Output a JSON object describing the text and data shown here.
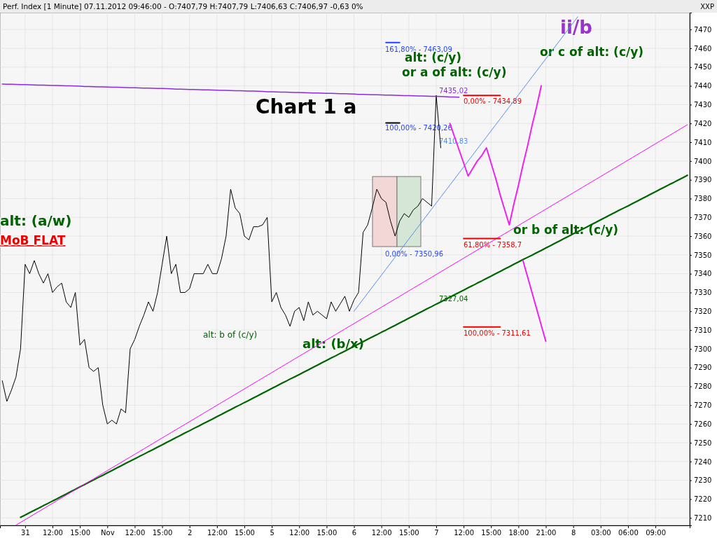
{
  "chart_data": {
    "type": "line",
    "title": "Perf. Index [1 Minute] 07.11.2012 09:46:00 - O:7407,79 H:7407,79 L:7406,63 C:7406,97 -0,63 0%",
    "ylabel": "XXP",
    "categories": [
      null,
      null,
      null,
      null,
      null,
      "31",
      null,
      null,
      null,
      null,
      null,
      "12:00",
      null,
      null,
      null,
      null,
      null,
      "15:00",
      null,
      null,
      null,
      null,
      null,
      "Nov",
      null,
      null,
      null,
      null,
      null,
      "12:00",
      null,
      null,
      null,
      null,
      null,
      "15:00",
      null,
      null,
      null,
      null,
      null,
      "2",
      null,
      null,
      null,
      null,
      null,
      "12:00",
      null,
      null,
      null,
      null,
      null,
      "15:00",
      null,
      null,
      null,
      null,
      null,
      "5",
      null,
      null,
      null,
      null,
      null,
      "12:00",
      null,
      null,
      null,
      null,
      null,
      "15:00",
      null,
      null,
      null,
      null,
      null,
      "6",
      null,
      null,
      null,
      null,
      null,
      "12:00",
      null,
      null,
      null,
      null,
      null,
      "15:00",
      null,
      null,
      null,
      null,
      null,
      "7",
      null,
      null,
      null,
      null,
      null,
      "12:00",
      null,
      null,
      null,
      null,
      null,
      "15:00",
      null,
      null,
      null,
      null,
      null,
      "18:00",
      null,
      null,
      null,
      null,
      null,
      "21:00",
      null,
      null,
      null,
      null,
      null,
      "8",
      null,
      null,
      null,
      null,
      null,
      "03:00",
      null,
      null,
      null,
      null,
      null,
      "06:00",
      null,
      null,
      null,
      null,
      null,
      "09:00",
      null,
      null,
      null,
      null,
      null,
      null,
      null
    ],
    "ylim": [
      7206,
      7479
    ],
    "yticks": [
      7210,
      7220,
      7230,
      7240,
      7250,
      7260,
      7270,
      7280,
      7290,
      7300,
      7310,
      7320,
      7330,
      7340,
      7350,
      7360,
      7370,
      7380,
      7390,
      7400,
      7410,
      7420,
      7430,
      7440,
      7450,
      7460,
      7470
    ],
    "grid": true,
    "series": [
      {
        "color": "#000000",
        "values": [
          7283,
          7272,
          7278,
          7285,
          7300,
          7345,
          7340,
          7347,
          7340,
          7335,
          7340,
          7330,
          7333,
          7335,
          7325,
          7322,
          7330,
          7302,
          7305,
          7290,
          7288,
          7290,
          7270,
          7260,
          7262,
          7260,
          7268,
          7266,
          7300,
          7305,
          7312,
          7318,
          7325,
          7320,
          7330,
          7345,
          7360,
          7340,
          7345,
          7330,
          7330,
          7332,
          7340,
          7340,
          7340,
          7345,
          7340,
          7340,
          7348,
          7360,
          7385,
          7375,
          7372,
          7360,
          7358,
          7365,
          7365,
          7366,
          7370,
          7325,
          7330,
          7322,
          7318,
          7312,
          7320,
          7322,
          7315,
          7325,
          7318,
          7320,
          7318,
          7316,
          7325,
          7320,
          7324,
          7328,
          7320,
          7326,
          7330,
          7362,
          7366,
          7375,
          7385,
          7380,
          7378,
          7368,
          7360,
          7368,
          7372,
          7370,
          7374,
          7376,
          7380,
          7378,
          7376,
          7435,
          7407,
          null,
          null,
          null,
          null,
          null,
          null,
          null,
          null,
          null,
          null,
          null,
          null,
          null,
          null,
          null,
          null,
          null,
          null,
          null,
          null,
          null,
          null,
          null,
          null,
          null,
          null,
          null,
          null,
          null,
          null,
          null,
          null,
          null,
          null,
          null,
          null,
          null,
          null,
          null,
          null,
          null,
          null,
          null,
          null,
          null,
          null,
          null,
          null,
          null,
          null,
          null,
          null,
          null,
          null
        ]
      },
      {
        "color": "#8a2be2",
        "values": [
          7441,
          7440.9,
          7440.9,
          7440.8,
          7440.7,
          7440.7,
          7440.6,
          7440.5,
          7440.4,
          7440.4,
          7440.3,
          7440.2,
          7440.2,
          7440.1,
          7440,
          7440,
          7439.9,
          7439.8,
          7439.7,
          7439.7,
          7439.6,
          7439.5,
          7439.5,
          7439.4,
          7439.3,
          7439.3,
          7439.2,
          7439.1,
          7439,
          7439,
          7438.9,
          7438.8,
          7438.8,
          7438.7,
          7438.6,
          7438.6,
          7438.5,
          7438.4,
          7438.3,
          7438.3,
          7438.2,
          7438.1,
          7438.1,
          7438,
          7437.9,
          7437.9,
          7437.8,
          7437.7,
          7437.6,
          7437.6,
          7437.5,
          7437.4,
          7437.4,
          7437.3,
          7437.2,
          7437.2,
          7437.1,
          7437,
          7436.9,
          7436.9,
          7436.8,
          7436.7,
          7436.7,
          7436.6,
          7436.5,
          7436.5,
          7436.4,
          7436.3,
          7436.2,
          7436.2,
          7436.1,
          7436,
          7436,
          7435.9,
          7435.8,
          7435.8,
          7435.7,
          7435.6,
          7435.5,
          7435.5,
          7435.4,
          7435.3,
          7435.3,
          7435.2,
          7435.1,
          7435.1,
          7435,
          7434.9,
          7434.8,
          7434.8,
          7434.7,
          7434.6,
          7434.6,
          7434.5,
          7434.4,
          7434.4,
          7434.3,
          7434.2,
          7434.1,
          7434.1,
          7434,
          null,
          null,
          null,
          null,
          null,
          null,
          null,
          null,
          null,
          null,
          null,
          null,
          null,
          null,
          null,
          null,
          null,
          null,
          null,
          null,
          null,
          null,
          null,
          null,
          null,
          null,
          null,
          null,
          null,
          null,
          null,
          null,
          null,
          null,
          null,
          null,
          null,
          null,
          null,
          null,
          null,
          null,
          null,
          null,
          null,
          null,
          null,
          null,
          null,
          null
        ]
      },
      {
        "color": "#006400",
        "values": [
          null,
          null,
          null,
          null,
          7210.3,
          7211.5,
          7212.8,
          7214.0,
          7215.2,
          7216.5,
          7217.7,
          7219.0,
          7220.2,
          7221.5,
          7222.7,
          7224.0,
          7225.2,
          7226.5,
          7227.7,
          7229.0,
          7230.2,
          7231.5,
          7232.7,
          7234.0,
          7235.2,
          7236.5,
          7237.7,
          7239.0,
          7240.2,
          7241.4,
          7242.7,
          7243.9,
          7245.2,
          7246.4,
          7247.7,
          7248.9,
          7250.2,
          7251.4,
          7252.7,
          7253.9,
          7255.2,
          7256.4,
          7257.7,
          7258.9,
          7260.2,
          7261.4,
          7262.6,
          7263.9,
          7265.1,
          7266.4,
          7267.6,
          7268.9,
          7270.1,
          7271.4,
          7272.6,
          7273.9,
          7275.1,
          7276.4,
          7277.6,
          7278.9,
          7280.1,
          7281.4,
          7282.6,
          7283.9,
          7285.1,
          7286.3,
          7287.6,
          7288.8,
          7290.1,
          7291.3,
          7292.6,
          7293.8,
          7295.1,
          7296.3,
          7297.6,
          7298.8,
          7300.1,
          7301.3,
          7302.6,
          7303.8,
          7305.1,
          7306.3,
          7307.5,
          7308.8,
          7310.0,
          7311.3,
          7312.5,
          7313.8,
          7315.0,
          7316.3,
          7317.5,
          7318.8,
          7320.0,
          7321.3,
          7322.5,
          7323.8,
          7325.0,
          7326.3,
          7327.5,
          7328.8,
          7330.0,
          7331.2,
          7332.5,
          7333.7,
          7335.0,
          7336.2,
          7337.5,
          7338.7,
          7340.0,
          7341.2,
          7342.5,
          7343.7,
          7345.0,
          7346.2,
          7347.5,
          7348.7,
          7349.9,
          7351.2,
          7352.4,
          7353.7,
          7354.9,
          7356.2,
          7357.4,
          7358.7,
          7359.9,
          7361.2,
          7362.4,
          7363.7,
          7364.9,
          7366.2,
          7367.4,
          7368.7,
          7369.9,
          7371.2,
          7372.4,
          7373.7,
          7374.9,
          7376.1,
          7377.4,
          7378.6,
          7379.9,
          7381.1,
          7382.4,
          7383.6,
          7384.9,
          7386.1,
          7387.4,
          7388.6,
          7389.9,
          7391.1,
          7392.4
        ]
      },
      {
        "color": "#ff00ff",
        "values": [
          null,
          null,
          null,
          7206.15,
          7207.6,
          7209.05,
          7210.5,
          7211.95,
          7213.4,
          7214.85,
          7216.3,
          7217.75,
          7219.2,
          7220.65,
          7222.1,
          7223.55,
          7225,
          7226.45,
          7227.9,
          7229.35,
          7230.8,
          7232.25,
          7233.7,
          7235.15,
          7236.6,
          7238.05,
          7239.5,
          7240.95,
          7242.4,
          7243.85,
          7245.3,
          7246.75,
          7248.2,
          7249.65,
          7251.1,
          7252.55,
          7254,
          7255.45,
          7256.9,
          7258.35,
          7259.8,
          7261.25,
          7262.7,
          7264.15,
          7265.6,
          7267.05,
          7268.5,
          7269.95,
          7271.4,
          7272.85,
          7274.3,
          7275.75,
          7277.2,
          7278.65,
          7280.1,
          7281.55,
          7283,
          7284.45,
          7285.9,
          7287.35,
          7288.8,
          7290.25,
          7291.7,
          7293.15,
          7294.6,
          7296.05,
          7297.5,
          7298.95,
          7300.4,
          7301.85,
          7303.3,
          7304.75,
          7306.2,
          7307.65,
          7309.1,
          7310.55,
          7312,
          7313.45,
          7314.9,
          7316.35,
          7317.8,
          7319.25,
          7320.7,
          7322.15,
          7323.6,
          7325.05,
          7326.5,
          7327.95,
          7329.4,
          7330.85,
          7332.3,
          7333.75,
          7335.2,
          7336.65,
          7338.1,
          7339.55,
          7341,
          7342.45,
          7343.9,
          7345.35,
          7346.8,
          7348.25,
          7349.7,
          7351.15,
          7352.6,
          7354.05,
          7355.5,
          7356.95,
          7358.4,
          7359.85,
          7361.3,
          7362.75,
          7364.2,
          7365.65,
          7367.1,
          7368.55,
          7370,
          7371.45,
          7372.9,
          7374.35,
          7375.8,
          7377.25,
          7378.7,
          7380.15,
          7381.6,
          7383.05,
          7384.5,
          7385.95,
          7387.4,
          7388.85,
          7390.3,
          7391.75,
          7393.2,
          7394.65,
          7396.1,
          7397.55,
          7399,
          7400.45,
          7401.9,
          7403.35,
          7404.8,
          7406.25,
          7407.7,
          7409.15,
          7410.6,
          7412.05,
          7413.5,
          7414.95,
          7416.4,
          7417.85,
          7419.3
        ]
      },
      {
        "color": "#4f8ff0",
        "values": [
          null,
          null,
          null,
          null,
          null,
          null,
          null,
          null,
          null,
          null,
          null,
          null,
          null,
          null,
          null,
          null,
          null,
          null,
          null,
          null,
          null,
          null,
          null,
          null,
          null,
          null,
          null,
          null,
          null,
          null,
          null,
          null,
          null,
          null,
          null,
          null,
          null,
          null,
          null,
          null,
          null,
          null,
          null,
          null,
          null,
          null,
          null,
          null,
          null,
          null,
          null,
          null,
          null,
          null,
          null,
          null,
          null,
          null,
          null,
          null,
          null,
          null,
          null,
          null,
          null,
          null,
          null,
          null,
          null,
          null,
          null,
          null,
          null,
          null,
          null,
          null,
          null,
          7320,
          7323.2,
          7326.4,
          7329.6,
          7332.8,
          7336,
          7339.2,
          7342.4,
          7345.6,
          7348.8,
          7352,
          7355.2,
          7358.4,
          7361.6,
          7364.8,
          7368,
          7371.2,
          7374.4,
          7377.6,
          7380.8,
          7384,
          7387.2,
          7390.4,
          7393.6,
          7396.8,
          7400,
          7403.2,
          7406.4,
          7409.6,
          7412.8,
          7416,
          7419.2,
          7422.4,
          7425.6,
          7428.8,
          7432,
          7435.2,
          7438.4,
          7441.6,
          7444.8,
          7448,
          7451.2,
          7454.4,
          7457.6,
          7460.8,
          7464,
          7467.2,
          7470.4,
          7473.6,
          7476.8,
          null,
          null,
          null,
          null,
          null,
          null,
          null,
          null,
          null,
          null,
          null,
          null,
          null,
          null,
          null,
          null,
          null,
          null,
          null,
          null,
          null,
          null,
          null,
          null
        ]
      },
      {
        "color": "#ee22ee",
        "values": [
          null,
          null,
          null,
          null,
          null,
          null,
          null,
          null,
          null,
          null,
          null,
          null,
          null,
          null,
          null,
          null,
          null,
          null,
          null,
          null,
          null,
          null,
          null,
          null,
          null,
          null,
          null,
          null,
          null,
          null,
          null,
          null,
          null,
          null,
          null,
          null,
          null,
          null,
          null,
          null,
          null,
          null,
          null,
          null,
          null,
          null,
          null,
          null,
          null,
          null,
          null,
          null,
          null,
          null,
          null,
          null,
          null,
          null,
          null,
          null,
          null,
          null,
          null,
          null,
          null,
          null,
          null,
          null,
          null,
          null,
          null,
          null,
          null,
          null,
          null,
          null,
          null,
          null,
          null,
          null,
          null,
          null,
          null,
          null,
          null,
          null,
          null,
          null,
          null,
          null,
          null,
          null,
          null,
          null,
          null,
          null,
          null,
          null,
          7420,
          7413,
          7406,
          7399,
          7392,
          7396,
          7400,
          7403,
          7407,
          7399,
          7391,
          7382,
          7374,
          7366,
          7377,
          7387,
          7398,
          7408,
          7419,
          7429,
          7440,
          null,
          null,
          null,
          null,
          null,
          null,
          null,
          null,
          null,
          null,
          null,
          null,
          null,
          null,
          null,
          null,
          null,
          null,
          null,
          null,
          null,
          null,
          null,
          null,
          null,
          null,
          null,
          null,
          null,
          null,
          null,
          null
        ]
      },
      {
        "color": "#ee22ee",
        "values": [
          null,
          null,
          null,
          null,
          null,
          null,
          null,
          null,
          null,
          null,
          null,
          null,
          null,
          null,
          null,
          null,
          null,
          null,
          null,
          null,
          null,
          null,
          null,
          null,
          null,
          null,
          null,
          null,
          null,
          null,
          null,
          null,
          null,
          null,
          null,
          null,
          null,
          null,
          null,
          null,
          null,
          null,
          null,
          null,
          null,
          null,
          null,
          null,
          null,
          null,
          null,
          null,
          null,
          null,
          null,
          null,
          null,
          null,
          null,
          null,
          null,
          null,
          null,
          null,
          null,
          null,
          null,
          null,
          null,
          null,
          null,
          null,
          null,
          null,
          null,
          null,
          null,
          null,
          null,
          null,
          null,
          null,
          null,
          null,
          null,
          null,
          null,
          null,
          null,
          null,
          null,
          null,
          null,
          null,
          null,
          null,
          null,
          null,
          null,
          null,
          null,
          null,
          null,
          null,
          null,
          null,
          null,
          null,
          null,
          null,
          null,
          null,
          null,
          null,
          7347,
          7338.4,
          7329.8,
          7321.2,
          7312.6,
          7304,
          null,
          null,
          null,
          null,
          null,
          null,
          null,
          null,
          null,
          null,
          null,
          null,
          null,
          null,
          null,
          null,
          null,
          null,
          null,
          null,
          null,
          null,
          null,
          null,
          null,
          null,
          null,
          null,
          null,
          null,
          null
        ]
      },
      {
        "color": "#ee0000",
        "values": [
          null,
          null,
          null,
          null,
          null,
          null,
          null,
          null,
          null,
          null,
          null,
          null,
          null,
          null,
          null,
          null,
          null,
          null,
          null,
          null,
          null,
          null,
          null,
          null,
          null,
          null,
          null,
          null,
          null,
          null,
          null,
          null,
          null,
          null,
          null,
          null,
          null,
          null,
          null,
          null,
          null,
          null,
          null,
          null,
          null,
          null,
          null,
          null,
          null,
          null,
          null,
          null,
          null,
          null,
          null,
          null,
          null,
          null,
          null,
          null,
          null,
          null,
          null,
          null,
          null,
          null,
          null,
          null,
          null,
          null,
          null,
          null,
          null,
          null,
          null,
          null,
          null,
          null,
          null,
          null,
          null,
          null,
          null,
          null,
          null,
          null,
          null,
          null,
          null,
          null,
          null,
          null,
          null,
          null,
          null,
          null,
          null,
          null,
          null,
          null,
          null,
          7434.89,
          7434.89,
          7434.89,
          7434.89,
          7434.89,
          7434.89,
          7434.89,
          7434.89,
          7434.89,
          null,
          null,
          null,
          null,
          null,
          null,
          null,
          null,
          null,
          null,
          null,
          null,
          null,
          null,
          null,
          null,
          null,
          null,
          null,
          null,
          null,
          null,
          null,
          null,
          null,
          null,
          null,
          null,
          null,
          null,
          null,
          null,
          null,
          null,
          null,
          null,
          null,
          null,
          null,
          null,
          null
        ]
      },
      {
        "color": "#ee0000",
        "values": [
          null,
          null,
          null,
          null,
          null,
          null,
          null,
          null,
          null,
          null,
          null,
          null,
          null,
          null,
          null,
          null,
          null,
          null,
          null,
          null,
          null,
          null,
          null,
          null,
          null,
          null,
          null,
          null,
          null,
          null,
          null,
          null,
          null,
          null,
          null,
          null,
          null,
          null,
          null,
          null,
          null,
          null,
          null,
          null,
          null,
          null,
          null,
          null,
          null,
          null,
          null,
          null,
          null,
          null,
          null,
          null,
          null,
          null,
          null,
          null,
          null,
          null,
          null,
          null,
          null,
          null,
          null,
          null,
          null,
          null,
          null,
          null,
          null,
          null,
          null,
          null,
          null,
          null,
          null,
          null,
          null,
          null,
          null,
          null,
          null,
          null,
          null,
          null,
          null,
          null,
          null,
          null,
          null,
          null,
          null,
          null,
          null,
          null,
          null,
          null,
          null,
          7358.7,
          7358.7,
          7358.7,
          7358.7,
          7358.7,
          7358.7,
          7358.7,
          7358.7,
          7358.7,
          null,
          null,
          null,
          null,
          null,
          null,
          null,
          null,
          null,
          null,
          null,
          null,
          null,
          null,
          null,
          null,
          null,
          null,
          null,
          null,
          null,
          null,
          null,
          null,
          null,
          null,
          null,
          null,
          null,
          null,
          null,
          null,
          null,
          null,
          null,
          null,
          null,
          null,
          null,
          null,
          null
        ]
      },
      {
        "color": "#ee0000",
        "values": [
          null,
          null,
          null,
          null,
          null,
          null,
          null,
          null,
          null,
          null,
          null,
          null,
          null,
          null,
          null,
          null,
          null,
          null,
          null,
          null,
          null,
          null,
          null,
          null,
          null,
          null,
          null,
          null,
          null,
          null,
          null,
          null,
          null,
          null,
          null,
          null,
          null,
          null,
          null,
          null,
          null,
          null,
          null,
          null,
          null,
          null,
          null,
          null,
          null,
          null,
          null,
          null,
          null,
          null,
          null,
          null,
          null,
          null,
          null,
          null,
          null,
          null,
          null,
          null,
          null,
          null,
          null,
          null,
          null,
          null,
          null,
          null,
          null,
          null,
          null,
          null,
          null,
          null,
          null,
          null,
          null,
          null,
          null,
          null,
          null,
          null,
          null,
          null,
          null,
          null,
          null,
          null,
          null,
          null,
          null,
          null,
          null,
          null,
          null,
          null,
          null,
          7311.61,
          7311.61,
          7311.61,
          7311.61,
          7311.61,
          7311.61,
          7311.61,
          7311.61,
          7311.61,
          null,
          null,
          null,
          null,
          null,
          null,
          null,
          null,
          null,
          null,
          null,
          null,
          null,
          null,
          null,
          null,
          null,
          null,
          null,
          null,
          null,
          null,
          null,
          null,
          null,
          null,
          null,
          null,
          null,
          null,
          null,
          null,
          null,
          null,
          null,
          null,
          null,
          null,
          null,
          null,
          null
        ]
      },
      {
        "color": "#2244ff",
        "values": [
          null,
          null,
          null,
          null,
          null,
          null,
          null,
          null,
          null,
          null,
          null,
          null,
          null,
          null,
          null,
          null,
          null,
          null,
          null,
          null,
          null,
          null,
          null,
          null,
          null,
          null,
          null,
          null,
          null,
          null,
          null,
          null,
          null,
          null,
          null,
          null,
          null,
          null,
          null,
          null,
          null,
          null,
          null,
          null,
          null,
          null,
          null,
          null,
          null,
          null,
          null,
          null,
          null,
          null,
          null,
          null,
          null,
          null,
          null,
          null,
          null,
          null,
          null,
          null,
          null,
          null,
          null,
          null,
          null,
          null,
          null,
          null,
          null,
          null,
          null,
          null,
          null,
          null,
          null,
          null,
          null,
          null,
          null,
          null,
          7463.09,
          7463.09,
          7463.09,
          7463.09,
          null,
          null,
          null,
          null,
          null,
          null,
          null,
          null,
          null,
          null,
          null,
          null,
          null,
          null,
          null,
          null,
          null,
          null,
          null,
          null,
          null,
          null,
          null,
          null,
          null,
          null,
          null,
          null,
          null,
          null,
          null,
          null,
          null,
          null,
          null,
          null,
          null,
          null,
          null,
          null,
          null,
          null,
          null,
          null,
          null,
          null,
          null,
          null,
          null,
          null,
          null,
          null,
          null,
          null,
          null,
          null,
          null,
          null,
          null,
          null,
          null,
          null,
          null
        ]
      },
      {
        "color": "#000000",
        "values": [
          null,
          null,
          null,
          null,
          null,
          null,
          null,
          null,
          null,
          null,
          null,
          null,
          null,
          null,
          null,
          null,
          null,
          null,
          null,
          null,
          null,
          null,
          null,
          null,
          null,
          null,
          null,
          null,
          null,
          null,
          null,
          null,
          null,
          null,
          null,
          null,
          null,
          null,
          null,
          null,
          null,
          null,
          null,
          null,
          null,
          null,
          null,
          null,
          null,
          null,
          null,
          null,
          null,
          null,
          null,
          null,
          null,
          null,
          null,
          null,
          null,
          null,
          null,
          null,
          null,
          null,
          null,
          null,
          null,
          null,
          null,
          null,
          null,
          null,
          null,
          null,
          null,
          null,
          null,
          null,
          null,
          null,
          null,
          null,
          7420.26,
          7420.26,
          7420.26,
          7420.26,
          null,
          null,
          null,
          null,
          null,
          null,
          null,
          null,
          null,
          null,
          null,
          null,
          null,
          null,
          null,
          null,
          null,
          null,
          null,
          null,
          null,
          null,
          null,
          null,
          null,
          null,
          null,
          null,
          null,
          null,
          null,
          null,
          null,
          null,
          null,
          null,
          null,
          null,
          null,
          null,
          null,
          null,
          null,
          null,
          null,
          null,
          null,
          null,
          null,
          null,
          null,
          null,
          null,
          null,
          null,
          null,
          null,
          null,
          null,
          null,
          null,
          null,
          null
        ]
      }
    ],
    "annotations": [
      {
        "text": "0,00% - 7434,89",
        "y": 7434.89
      },
      {
        "text": "61,80% - 7358,7",
        "y": 7358.7
      },
      {
        "text": "100,00% - 7311,61",
        "y": 7311.61
      },
      {
        "text": "7435,02",
        "y": 7435.02
      },
      {
        "text": "7410,83",
        "y": 7410.83
      },
      "161,80% - 7463,09",
      "100,00% - 7420,26",
      "0,00% - 7350,96",
      "7327,04",
      "Chart 1 a",
      "alt: (a/w)",
      "MoB FLAT",
      "alt: (c/y)",
      "or a of alt: (c/y)",
      "ii/b",
      "or c of alt: (c/y)",
      "or b of alt: (c/y)",
      "alt: b of (c/y)",
      "alt: (b/x)"
    ]
  }
}
